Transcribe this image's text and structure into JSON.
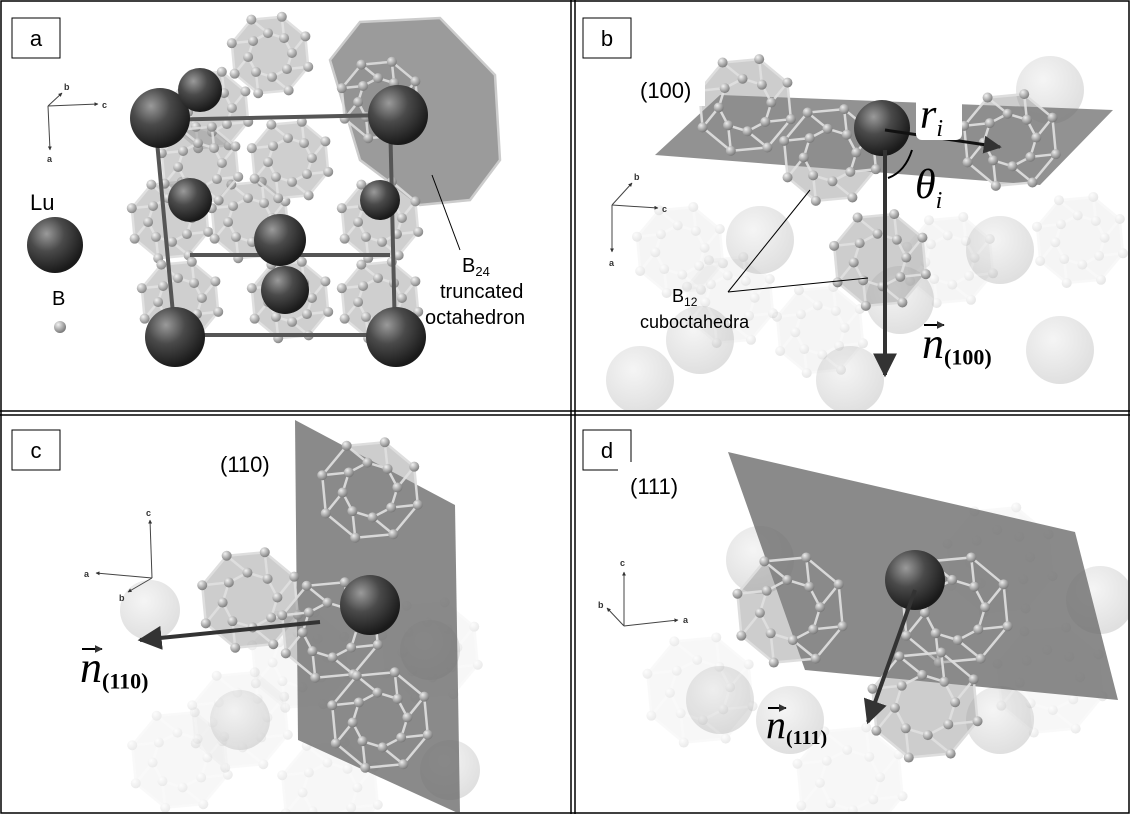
{
  "panels": [
    {
      "label": "a",
      "axes": [
        "b",
        "c",
        "a"
      ],
      "legend": [
        "Lu",
        "B"
      ],
      "annotation": {
        "base": "B",
        "sub": "24",
        "lines": [
          "truncated",
          "octahedron"
        ]
      }
    },
    {
      "label": "b",
      "axes": [
        "b",
        "c",
        "a"
      ],
      "plane": "(100)",
      "radius": {
        "base": "r",
        "sub": "i"
      },
      "angle": {
        "base": "θ",
        "sub": "i"
      },
      "annotation": {
        "base": "B",
        "sub": "12",
        "lines": [
          "cuboctahedra"
        ]
      },
      "normal": {
        "base": "n",
        "sub": "(100)"
      }
    },
    {
      "label": "c",
      "axes": [
        "c",
        "a",
        "b"
      ],
      "plane": "(110)",
      "normal": {
        "base": "n",
        "sub": "(110)"
      }
    },
    {
      "label": "d",
      "axes": [
        "c",
        "b",
        "a"
      ],
      "plane": "(111)",
      "normal": {
        "base": "n",
        "sub": "(111)"
      }
    }
  ]
}
